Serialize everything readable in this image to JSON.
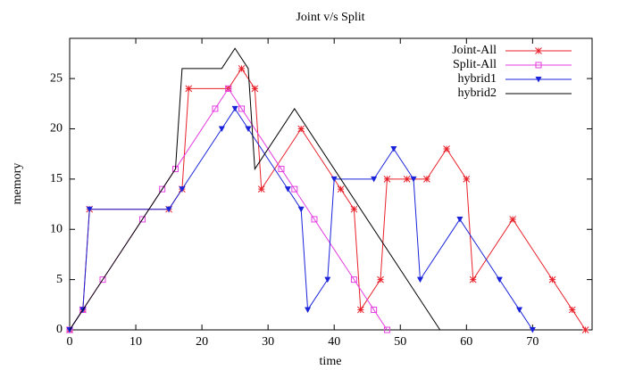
{
  "chart_data": {
    "type": "line",
    "title": "Joint v/s Split",
    "x_label": "time",
    "y_label": "memory",
    "xlim": [
      0,
      79
    ],
    "ylim": [
      0,
      29
    ],
    "xticks": [
      0,
      10,
      20,
      30,
      40,
      50,
      60,
      70
    ],
    "yticks": [
      0,
      5,
      10,
      15,
      20,
      25
    ],
    "legend": "top-right",
    "series": [
      {
        "name": "Joint-All",
        "color": "#e8212b",
        "marker": "star",
        "x": [
          0,
          2,
          3,
          15,
          17,
          18,
          24,
          26,
          28,
          29,
          35,
          41,
          43,
          44,
          47,
          48,
          51,
          54,
          57,
          60,
          61,
          67,
          73,
          76,
          78
        ],
        "values": [
          0,
          2,
          12,
          12,
          14,
          24,
          24,
          26,
          24,
          14,
          20,
          14,
          12,
          2,
          5,
          15,
          15,
          15,
          18,
          15,
          5,
          11,
          5,
          2,
          0
        ]
      },
      {
        "name": "Split-All",
        "color": "#e43de0",
        "marker": "square",
        "x": [
          0,
          2,
          5,
          11,
          14,
          16,
          22,
          24,
          26,
          32,
          34,
          37,
          43,
          46,
          48
        ],
        "values": [
          0,
          2,
          5,
          11,
          14,
          16,
          22,
          24,
          22,
          16,
          14,
          11,
          5,
          2,
          0
        ]
      },
      {
        "name": "hybrid1",
        "color": "#1a23d9",
        "marker": "triangle",
        "x": [
          0,
          2,
          3,
          15,
          17,
          23,
          25,
          27,
          33,
          35,
          36,
          39,
          40,
          46,
          49,
          52,
          53,
          59,
          65,
          68,
          70
        ],
        "values": [
          0,
          2,
          12,
          12,
          14,
          20,
          22,
          20,
          14,
          12,
          2,
          5,
          15,
          15,
          18,
          15,
          5,
          11,
          5,
          2,
          0
        ]
      },
      {
        "name": "hybrid2",
        "color": "#000000",
        "marker": "none",
        "x": [
          0,
          16,
          17,
          23,
          25,
          27,
          28,
          34,
          56
        ],
        "values": [
          0,
          16,
          26,
          26,
          28,
          26,
          16,
          22,
          0
        ]
      }
    ]
  }
}
